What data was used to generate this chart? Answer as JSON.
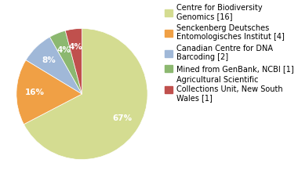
{
  "slices": [
    {
      "label": "Centre for Biodiversity\nGenomics [16]",
      "value": 66,
      "color": "#d4dc91"
    },
    {
      "label": "Senckenberg Deutsches\nEntomologisches Institut [4]",
      "value": 16,
      "color": "#f0a045"
    },
    {
      "label": "Canadian Centre for DNA\nBarcoding [2]",
      "value": 8,
      "color": "#a0b8d8"
    },
    {
      "label": "Mined from GenBank, NCBI [1]",
      "value": 4,
      "color": "#8cb870"
    },
    {
      "label": "Agricultural Scientific\nCollections Unit, New South\nWales [1]",
      "value": 4,
      "color": "#c0504d"
    }
  ],
  "autopct_fontsize": 7.5,
  "legend_fontsize": 7,
  "background_color": "#ffffff"
}
